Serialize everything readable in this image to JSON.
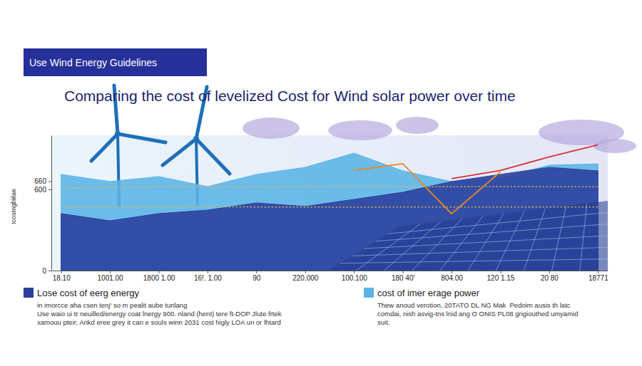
{
  "chart_data": {
    "type": "line",
    "subtitle": "Use Wind Energy Guidelines",
    "title": "Comparing the cost of levelized Cost for Wind solar power over time",
    "y_label": "Icosmgbiilae",
    "categories": [
      "18.10",
      "1001.00",
      "1800 1.00",
      "16!. 1.00",
      "90",
      "220.000",
      "100.100",
      "180 40'",
      "804.00",
      "120 1.15",
      "20 80",
      "18771"
    ],
    "ylim": [
      0,
      1000
    ],
    "yticks": [
      0,
      600,
      660
    ],
    "grid": false,
    "legend": "bottom",
    "series": [
      {
        "name": "Lose cost of eerg energy",
        "type": "area",
        "color": "#2b3f9c",
        "values": [
          421,
          368,
          421,
          447,
          500,
          474,
          526,
          579,
          658,
          711,
          763,
          737
        ]
      },
      {
        "name": "cost of imer erage power",
        "type": "area",
        "color": "#5ab4e6",
        "values": [
          711,
          658,
          695,
          621,
          711,
          763,
          868,
          737,
          658,
          684,
          779,
          789
        ]
      },
      {
        "type": "line",
        "color": "#e8b84a",
        "line_style": "dotted",
        "values": [
          610,
          615,
          620,
          620,
          618,
          620,
          622,
          620,
          620,
          621,
          620,
          620
        ]
      },
      {
        "type": "line",
        "color": "#e8b84a",
        "line_style": "dotted",
        "values": [
          470,
          468,
          470,
          472,
          470,
          470,
          468,
          470,
          470,
          470,
          470,
          470
        ]
      },
      {
        "type": "line",
        "color": "#e3892b",
        "values": [
          null,
          null,
          null,
          null,
          null,
          null,
          740,
          790,
          420,
          730,
          null,
          null
        ]
      },
      {
        "type": "line",
        "color": "#d8323a",
        "values": [
          null,
          null,
          null,
          null,
          null,
          null,
          null,
          null,
          680,
          740,
          840,
          930
        ]
      }
    ],
    "annotations": [
      [
        "in imorcce aha csen tenj' so m pealit aube tunlang",
        "Use waio ui tr neuilled/energy coat lnergy 900. nland (hent) tere ft-DOP Jlute frtek",
        "xamouu pteir, Arikd eree grey it can e souls winn 2031 cost higly LOA un or lhtard"
      ],
      [
        "Thew anoud verotion, 20TATO DL NG Mak  Pedoim ausis th latc",
        "comdai, nish asvig-tns lnid ang O ONIS PL08 grigiouthed umyamid",
        "suit."
      ]
    ]
  }
}
